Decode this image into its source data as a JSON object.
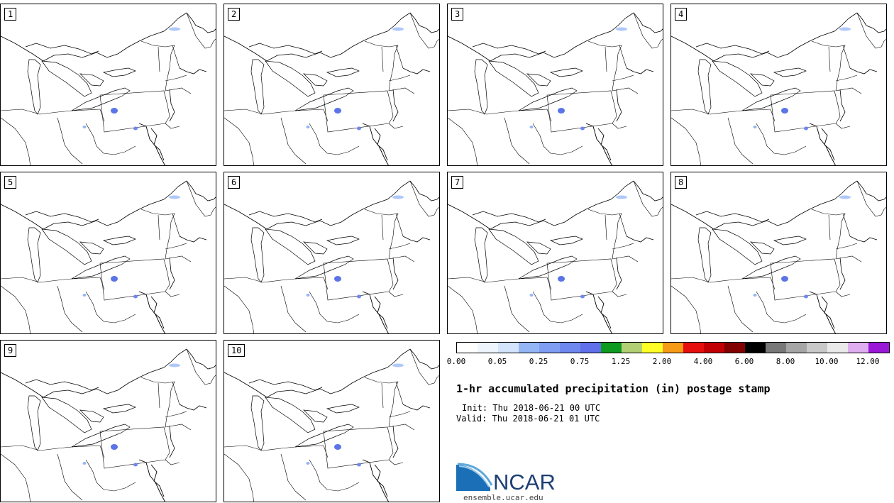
{
  "panels": [
    "1",
    "2",
    "3",
    "4",
    "5",
    "6",
    "7",
    "8",
    "9",
    "10"
  ],
  "colorbar": {
    "colors": [
      "#ffffff",
      "#eef5fd",
      "#d4e4fb",
      "#95b6f5",
      "#7f9ef3",
      "#6f88f0",
      "#6070ea",
      "#0d9a20",
      "#b3cf74",
      "#ffff26",
      "#f59b15",
      "#e60f0e",
      "#c00003",
      "#830000",
      "#000000",
      "#787878",
      "#a5a5a5",
      "#c9c9c9",
      "#eaeaea",
      "#dfaef0",
      "#9b17d8"
    ],
    "ticks": [
      "0.00",
      "0.05",
      "0.25",
      "0.75",
      "1.25",
      "2.00",
      "4.00",
      "6.00",
      "8.00",
      "10.00",
      "12.00"
    ]
  },
  "title": "1-hr accumulated precipitation (in) postage stamp",
  "init_text": "Init: Thu 2018-06-21 00 UTC",
  "valid_text": "Valid: Thu 2018-06-21 01 UTC",
  "logo_text": "NCAR",
  "site": "ensemble.ucar.edu"
}
